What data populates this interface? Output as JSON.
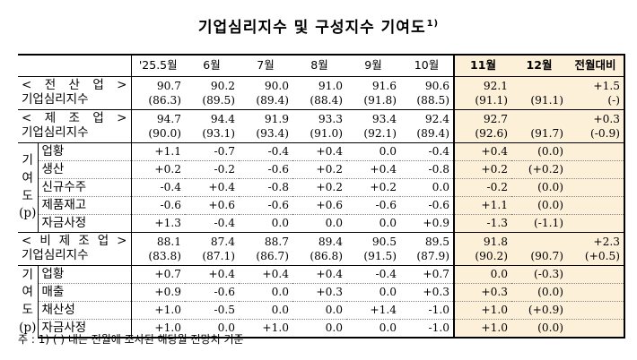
{
  "title": "기업심리지수 및 구성지수 기여도",
  "title_sup": "1)",
  "headers": [
    "'25.5월",
    "6월",
    "7월",
    "8월",
    "9월",
    "10월",
    "11월",
    "12월",
    "전월대비"
  ],
  "sections": [
    {
      "name": "< 전 산 업 >",
      "index_label": "기업심리지수",
      "values": [
        "90.7",
        "90.2",
        "90.0",
        "91.0",
        "91.6",
        "90.6",
        "92.1",
        "",
        "+1.5"
      ],
      "previous": [
        "(86.3)",
        "(89.5)",
        "(89.4)",
        "(88.4)",
        "(91.8)",
        "(88.5)",
        "(91.1)",
        "(91.1)",
        "(-)"
      ]
    },
    {
      "name": "< 제 조 업 >",
      "index_label": "기업심리지수",
      "values": [
        "94.7",
        "94.4",
        "91.9",
        "93.3",
        "93.4",
        "92.4",
        "92.7",
        "",
        "+0.3"
      ],
      "previous": [
        "(90.0)",
        "(93.1)",
        "(93.4)",
        "(91.0)",
        "(92.1)",
        "(89.4)",
        "(92.6)",
        "(91.7)",
        "(-0.9)"
      ],
      "side_label": [
        "기",
        "여",
        "도",
        "(p)"
      ],
      "rows": [
        {
          "label": "업황",
          "values": [
            "+1.1",
            "-0.7",
            "-0.4",
            "+0.4",
            "0.0",
            "-0.4",
            "+0.4",
            "(0.0)",
            ""
          ]
        },
        {
          "label": "생산",
          "values": [
            "+0.2",
            "-0.2",
            "-0.6",
            "+0.2",
            "+0.4",
            "-0.8",
            "+0.2",
            "(+0.2)",
            ""
          ]
        },
        {
          "label": "신규수주",
          "values": [
            "-0.4",
            "+0.4",
            "-0.8",
            "+0.2",
            "+0.2",
            "0.0",
            "-0.2",
            "(0.0)",
            ""
          ]
        },
        {
          "label": "제품재고",
          "values": [
            "-0.6",
            "+0.6",
            "-0.6",
            "+0.6",
            "-0.6",
            "-0.6",
            "+1.1",
            "(0.0)",
            ""
          ]
        },
        {
          "label": "자금사정",
          "values": [
            "+1.3",
            "-0.4",
            "0.0",
            "0.0",
            "0.0",
            "+0.9",
            "-1.3",
            "(-1.1)",
            ""
          ]
        }
      ]
    },
    {
      "name": "< 비 제 조 업 >",
      "index_label": "기업심리지수",
      "values": [
        "88.1",
        "87.4",
        "88.7",
        "89.4",
        "90.5",
        "89.5",
        "91.8",
        "",
        "+2.3"
      ],
      "previous": [
        "(83.8)",
        "(87.1)",
        "(86.7)",
        "(86.8)",
        "(91.5)",
        "(87.9)",
        "(90.2)",
        "(90.7)",
        "(+0.5)"
      ],
      "side_label": [
        "기",
        "여",
        "도",
        "(p)"
      ],
      "rows": [
        {
          "label": "업황",
          "values": [
            "+0.7",
            "+0.4",
            "+0.4",
            "+0.4",
            "-0.4",
            "+0.7",
            "0.0",
            "(-0.3)",
            ""
          ]
        },
        {
          "label": "매출",
          "values": [
            "+0.9",
            "-0.6",
            "0.0",
            "+0.3",
            "0.0",
            "+0.3",
            "+0.3",
            "(0.0)",
            ""
          ]
        },
        {
          "label": "채산성",
          "values": [
            "+1.0",
            "-0.5",
            "0.0",
            "0.0",
            "+1.4",
            "-1.0",
            "+1.0",
            "(+0.9)",
            ""
          ]
        },
        {
          "label": "자금사정",
          "values": [
            "+1.0",
            "0.0",
            "+1.0",
            "0.0",
            "0.0",
            "-1.0",
            "+1.0",
            "(0.0)",
            ""
          ]
        }
      ]
    }
  ],
  "footnote": "주 : 1) (   ) 내는 전월에 조사된 해당월 전망치 기준"
}
